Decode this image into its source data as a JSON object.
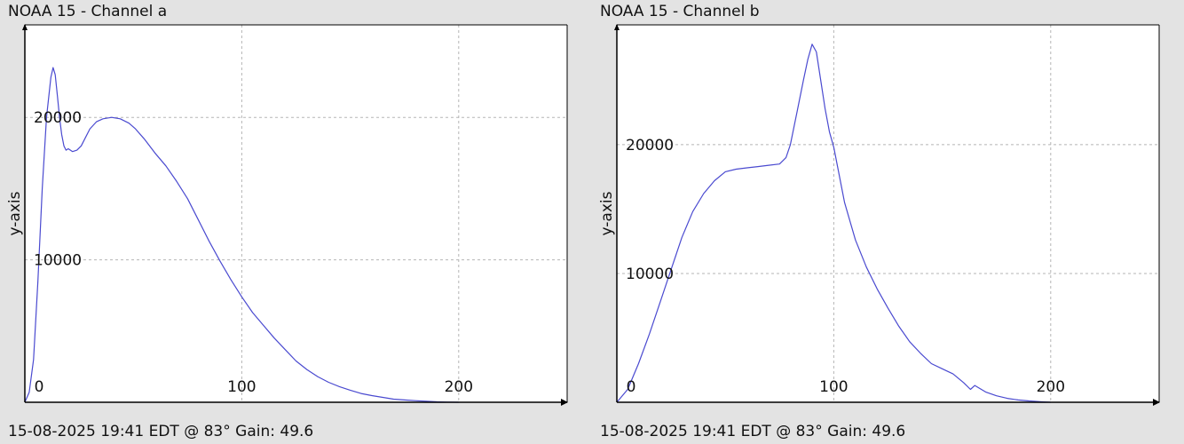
{
  "chart_data": [
    {
      "type": "line",
      "title": "NOAA 15 - Channel a",
      "footer": "15-08-2025 19:41 EDT @ 83° Gain: 49.6",
      "ylabel": "y-axis",
      "xlabel": "",
      "xlim": [
        0,
        250
      ],
      "ylim": [
        0,
        26500
      ],
      "x_ticks": [
        0,
        100,
        200
      ],
      "y_ticks": [
        10000,
        20000
      ],
      "grid": true,
      "line_color": "#4a4ad0",
      "series": [
        {
          "x": [
            0,
            2,
            4,
            6,
            8,
            10,
            12,
            13,
            14,
            15,
            16,
            17,
            18,
            19,
            20,
            22,
            24,
            26,
            28,
            30,
            33,
            36,
            40,
            44,
            48,
            51,
            55,
            60,
            65,
            70,
            75,
            80,
            85,
            90,
            95,
            100,
            105,
            110,
            115,
            120,
            125,
            130,
            135,
            140,
            145,
            150,
            155,
            160,
            165,
            170,
            175,
            180,
            185,
            190,
            195,
            200
          ],
          "y": [
            0,
            700,
            3000,
            8500,
            15000,
            20000,
            22800,
            23500,
            23000,
            21500,
            20000,
            18800,
            18000,
            17700,
            17800,
            17600,
            17700,
            18000,
            18600,
            19200,
            19700,
            19900,
            20000,
            19900,
            19600,
            19200,
            18500,
            17500,
            16600,
            15500,
            14300,
            12800,
            11300,
            9900,
            8600,
            7400,
            6300,
            5400,
            4500,
            3700,
            2900,
            2300,
            1800,
            1400,
            1100,
            850,
            620,
            470,
            340,
            220,
            160,
            110,
            70,
            30,
            10,
            0
          ]
        }
      ]
    },
    {
      "type": "line",
      "title": "NOAA 15 - Channel b",
      "footer": "15-08-2025 19:41 EDT @ 83° Gain: 49.6",
      "ylabel": "y-axis",
      "xlabel": "",
      "xlim": [
        0,
        250
      ],
      "ylim": [
        0,
        29300
      ],
      "x_ticks": [
        0,
        100,
        200
      ],
      "y_ticks": [
        10000,
        20000
      ],
      "grid": true,
      "line_color": "#4a4ad0",
      "series": [
        {
          "x": [
            0,
            5,
            10,
            15,
            20,
            25,
            30,
            35,
            40,
            45,
            50,
            55,
            60,
            65,
            70,
            75,
            78,
            80,
            83,
            86,
            88,
            90,
            92,
            94,
            96,
            98,
            100,
            105,
            110,
            115,
            120,
            125,
            130,
            135,
            140,
            145,
            150,
            155,
            160,
            163,
            165,
            170,
            175,
            180,
            185,
            190,
            195,
            200
          ],
          "y": [
            0,
            1000,
            3000,
            5300,
            7800,
            10300,
            12800,
            14800,
            16200,
            17200,
            17900,
            18100,
            18200,
            18300,
            18400,
            18500,
            19000,
            20000,
            22500,
            25000,
            26600,
            27800,
            27200,
            25000,
            22800,
            21000,
            19800,
            15500,
            12600,
            10500,
            8800,
            7300,
            5900,
            4700,
            3800,
            3000,
            2600,
            2200,
            1500,
            1000,
            1300,
            800,
            500,
            300,
            180,
            100,
            50,
            0
          ]
        }
      ]
    }
  ]
}
